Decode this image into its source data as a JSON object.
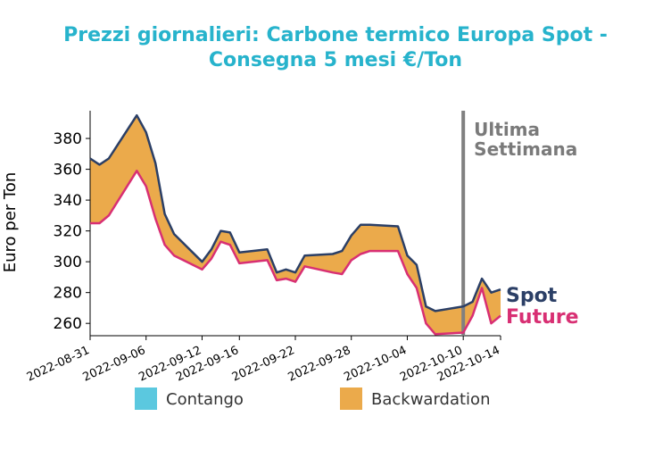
{
  "chart_data": {
    "type": "line",
    "title_line1": "Prezzi giornalieri: Carbone termico Europa Spot -",
    "title_line2": "Consegna 5 mesi €/Ton",
    "ylabel": "Euro per Ton",
    "ylim": [
      252,
      398
    ],
    "yticks": [
      260,
      280,
      300,
      320,
      340,
      360,
      380
    ],
    "xtick_labels": [
      "2022-08-31",
      "2022-09-06",
      "2022-09-12",
      "2022-09-16",
      "2022-09-22",
      "2022-09-28",
      "2022-10-04",
      "2022-10-10",
      "2022-10-14"
    ],
    "x": [
      "2022-08-31",
      "2022-09-01",
      "2022-09-02",
      "2022-09-05",
      "2022-09-06",
      "2022-09-07",
      "2022-09-08",
      "2022-09-09",
      "2022-09-12",
      "2022-09-13",
      "2022-09-14",
      "2022-09-15",
      "2022-09-16",
      "2022-09-19",
      "2022-09-20",
      "2022-09-21",
      "2022-09-22",
      "2022-09-23",
      "2022-09-26",
      "2022-09-27",
      "2022-09-28",
      "2022-09-29",
      "2022-09-30",
      "2022-10-03",
      "2022-10-04",
      "2022-10-05",
      "2022-10-06",
      "2022-10-07",
      "2022-10-10",
      "2022-10-11",
      "2022-10-12",
      "2022-10-13",
      "2022-10-14"
    ],
    "series": [
      {
        "name": "Spot",
        "color": "#2b3f66",
        "values": [
          367,
          363,
          367,
          395,
          384,
          364,
          331,
          318,
          300,
          308,
          320,
          319,
          306,
          308,
          293,
          295,
          293,
          304,
          305,
          307,
          317,
          324,
          324,
          323,
          304,
          298,
          271,
          268,
          271,
          274,
          289,
          280,
          282
        ]
      },
      {
        "name": "Future",
        "color": "#d82f73",
        "values": [
          325,
          325,
          330,
          359,
          349,
          328,
          311,
          304,
          295,
          302,
          313,
          311,
          299,
          301,
          288,
          289,
          287,
          297,
          293,
          292,
          301,
          305,
          307,
          307,
          292,
          283,
          260,
          253,
          254,
          265,
          283,
          260,
          265
        ]
      }
    ],
    "fill_legend": [
      {
        "label": "Contango",
        "color": "#5bc8df"
      },
      {
        "label": "Backwardation",
        "color": "#ebaa4b"
      }
    ],
    "annotation": {
      "line1": "Ultima",
      "line2": "Settimana",
      "x": "2022-10-10",
      "color": "#808080"
    },
    "grid": false,
    "legend_placement": "bottom-center"
  }
}
